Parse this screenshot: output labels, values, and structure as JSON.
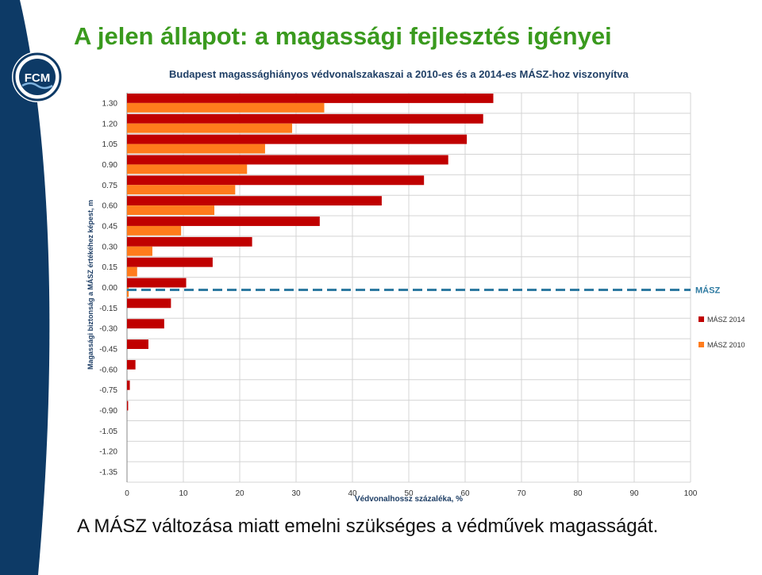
{
  "slide": {
    "title": "A jelen állapot: a magassági fejlesztés igényei",
    "caption": "A MÁSZ változása miatt emelni szükséges a védművek magasságát.",
    "logo_text": "FCM",
    "sidebar_color": "#0d3a66",
    "title_color": "#3a9a1e"
  },
  "chart_data": {
    "type": "bar",
    "orientation": "horizontal",
    "title": "Budapest magassághiányos védvonalszakaszai a 2010-es és a 2014-es MÁSZ-hoz viszonyítva",
    "xlabel": "Védvonalhossz százaléka, %",
    "ylabel": "Magassági biztonság a MÁSZ értékéhez képest, m",
    "xlim": [
      0,
      100
    ],
    "xticks": [
      "0",
      "10",
      "20",
      "30",
      "40",
      "50",
      "60",
      "70",
      "80",
      "90",
      "100"
    ],
    "categories": [
      "1.30",
      "1.20",
      "1.05",
      "0.90",
      "0.75",
      "0.60",
      "0.45",
      "0.30",
      "0.15",
      "0.00",
      "-0.15",
      "-0.30",
      "-0.45",
      "-0.60",
      "-0.75",
      "-0.90",
      "-1.05",
      "-1.20",
      "-1.35"
    ],
    "series": [
      {
        "name": "MÁSZ 2014",
        "color": "#c00000",
        "values": [
          65,
          63.2,
          60.3,
          57,
          52.7,
          45.2,
          34.2,
          22.2,
          15.2,
          10.5,
          7.8,
          6.6,
          3.8,
          1.5,
          0.5,
          0.2,
          0,
          0,
          0
        ]
      },
      {
        "name": "MÁSZ 2010",
        "color": "#ff7c1c",
        "values": [
          35,
          29.3,
          24.5,
          21.3,
          19.2,
          15.5,
          9.6,
          4.5,
          1.8,
          0.3,
          0,
          0,
          0,
          0,
          0,
          0,
          0,
          0,
          0
        ]
      }
    ],
    "reference_line": {
      "label": "MÁSZ",
      "y": "0.00",
      "color": "#2e7aa1"
    },
    "legend": "right",
    "grid": true
  }
}
